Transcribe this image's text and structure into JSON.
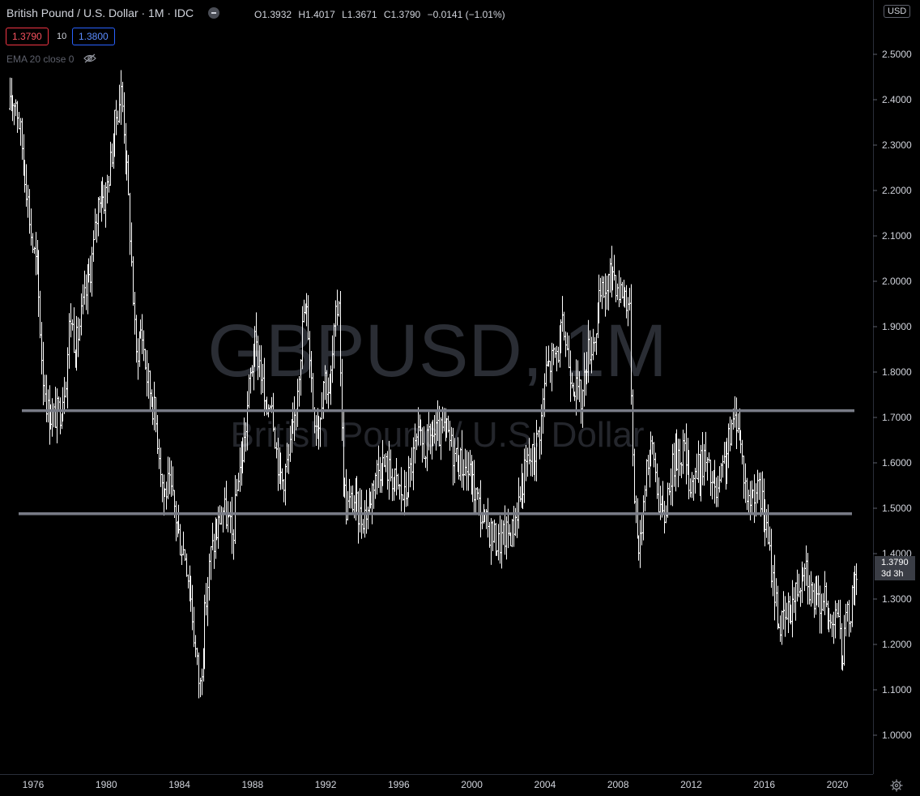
{
  "header": {
    "symbol_title": "British Pound / U.S. Dollar · 1M · IDC",
    "ohlc": {
      "open": "O1.3932",
      "high": "H1.4017",
      "low": "L1.3671",
      "close": "C1.3790",
      "change": "−0.0141 (−1.01%)"
    },
    "sell_price": "1.3790",
    "spread": "10",
    "buy_price": "1.3800",
    "indicator_label": "EMA 20 close 0",
    "currency_badge": "USD",
    "current_price": "1.3790",
    "countdown": "3d 3h"
  },
  "watermark": {
    "symbol": "GBPUSD, 1M",
    "description": "British Pound / U.S. Dollar"
  },
  "colors": {
    "background": "#000000",
    "bars": "#ffffff",
    "level_lines": "#787b86",
    "axis_text": "#d1d4dc"
  },
  "chart_data": {
    "type": "ohlc",
    "y_axis": {
      "ticks": [
        "1.0000",
        "1.1000",
        "1.2000",
        "1.3000",
        "1.4000",
        "1.5000",
        "1.6000",
        "1.7000",
        "1.8000",
        "1.9000",
        "2.0000",
        "2.1000",
        "2.2000",
        "2.3000",
        "2.4000",
        "2.5000"
      ],
      "range": [
        0.89,
        2.62
      ]
    },
    "x_axis": {
      "ticks": [
        "1976",
        "1980",
        "1984",
        "1988",
        "1992",
        "1996",
        "2000",
        "2004",
        "2008",
        "2012",
        "2016",
        "2020"
      ],
      "range": [
        1974.7,
        2021.7
      ]
    },
    "horizontal_levels": [
      1.715,
      1.488
    ],
    "series_path": [
      [
        1974.7,
        2.38
      ],
      [
        1975.0,
        2.41
      ],
      [
        1975.3,
        2.32
      ],
      [
        1975.6,
        2.22
      ],
      [
        1975.9,
        2.09
      ],
      [
        1976.2,
        2.02
      ],
      [
        1976.5,
        1.8
      ],
      [
        1976.8,
        1.71
      ],
      [
        1977.1,
        1.7
      ],
      [
        1977.5,
        1.72
      ],
      [
        1977.8,
        1.8
      ],
      [
        1978.0,
        1.93
      ],
      [
        1978.3,
        1.85
      ],
      [
        1978.7,
        1.94
      ],
      [
        1979.0,
        2.0
      ],
      [
        1979.3,
        2.08
      ],
      [
        1979.6,
        2.2
      ],
      [
        1979.9,
        2.18
      ],
      [
        1980.2,
        2.26
      ],
      [
        1980.5,
        2.36
      ],
      [
        1980.8,
        2.42
      ],
      [
        1981.0,
        2.32
      ],
      [
        1981.3,
        2.1
      ],
      [
        1981.6,
        1.83
      ],
      [
        1981.9,
        1.9
      ],
      [
        1982.2,
        1.79
      ],
      [
        1982.6,
        1.72
      ],
      [
        1982.9,
        1.62
      ],
      [
        1983.1,
        1.53
      ],
      [
        1983.4,
        1.55
      ],
      [
        1983.7,
        1.5
      ],
      [
        1984.0,
        1.43
      ],
      [
        1984.3,
        1.4
      ],
      [
        1984.6,
        1.31
      ],
      [
        1984.9,
        1.17
      ],
      [
        1985.1,
        1.1
      ],
      [
        1985.4,
        1.28
      ],
      [
        1985.7,
        1.4
      ],
      [
        1986.0,
        1.44
      ],
      [
        1986.3,
        1.5
      ],
      [
        1986.6,
        1.48
      ],
      [
        1986.9,
        1.43
      ],
      [
        1987.2,
        1.58
      ],
      [
        1987.5,
        1.63
      ],
      [
        1987.8,
        1.77
      ],
      [
        1988.1,
        1.86
      ],
      [
        1988.4,
        1.82
      ],
      [
        1988.7,
        1.7
      ],
      [
        1989.0,
        1.76
      ],
      [
        1989.3,
        1.62
      ],
      [
        1989.6,
        1.56
      ],
      [
        1989.9,
        1.6
      ],
      [
        1990.2,
        1.66
      ],
      [
        1990.5,
        1.8
      ],
      [
        1990.8,
        1.94
      ],
      [
        1991.0,
        1.92
      ],
      [
        1991.3,
        1.72
      ],
      [
        1991.6,
        1.68
      ],
      [
        1991.9,
        1.8
      ],
      [
        1992.2,
        1.75
      ],
      [
        1992.5,
        1.9
      ],
      [
        1992.7,
        1.97
      ],
      [
        1992.9,
        1.6
      ],
      [
        1993.1,
        1.5
      ],
      [
        1993.5,
        1.52
      ],
      [
        1993.9,
        1.48
      ],
      [
        1994.3,
        1.5
      ],
      [
        1994.7,
        1.58
      ],
      [
        1995.1,
        1.6
      ],
      [
        1995.5,
        1.58
      ],
      [
        1995.9,
        1.55
      ],
      [
        1996.3,
        1.52
      ],
      [
        1996.7,
        1.6
      ],
      [
        1997.0,
        1.65
      ],
      [
        1997.4,
        1.63
      ],
      [
        1997.8,
        1.66
      ],
      [
        1998.2,
        1.66
      ],
      [
        1998.6,
        1.67
      ],
      [
        1999.0,
        1.62
      ],
      [
        1999.4,
        1.6
      ],
      [
        1999.8,
        1.58
      ],
      [
        2000.2,
        1.53
      ],
      [
        2000.6,
        1.47
      ],
      [
        2001.0,
        1.45
      ],
      [
        2001.4,
        1.42
      ],
      [
        2001.8,
        1.44
      ],
      [
        2002.2,
        1.45
      ],
      [
        2002.6,
        1.53
      ],
      [
        2003.0,
        1.6
      ],
      [
        2003.4,
        1.62
      ],
      [
        2003.8,
        1.7
      ],
      [
        2004.0,
        1.8
      ],
      [
        2004.3,
        1.82
      ],
      [
        2004.7,
        1.85
      ],
      [
        2005.0,
        1.9
      ],
      [
        2005.3,
        1.82
      ],
      [
        2005.7,
        1.76
      ],
      [
        2006.0,
        1.74
      ],
      [
        2006.3,
        1.84
      ],
      [
        2006.7,
        1.88
      ],
      [
        2007.0,
        1.96
      ],
      [
        2007.4,
        1.99
      ],
      [
        2007.7,
        2.03
      ],
      [
        2008.0,
        1.98
      ],
      [
        2008.3,
        1.98
      ],
      [
        2008.6,
        1.95
      ],
      [
        2008.8,
        1.6
      ],
      [
        2009.0,
        1.44
      ],
      [
        2009.2,
        1.42
      ],
      [
        2009.5,
        1.6
      ],
      [
        2009.9,
        1.63
      ],
      [
        2010.2,
        1.52
      ],
      [
        2010.5,
        1.47
      ],
      [
        2010.8,
        1.57
      ],
      [
        2011.2,
        1.62
      ],
      [
        2011.6,
        1.63
      ],
      [
        2011.9,
        1.56
      ],
      [
        2012.3,
        1.58
      ],
      [
        2012.7,
        1.61
      ],
      [
        2013.0,
        1.57
      ],
      [
        2013.4,
        1.52
      ],
      [
        2013.8,
        1.6
      ],
      [
        2014.2,
        1.67
      ],
      [
        2014.5,
        1.71
      ],
      [
        2014.8,
        1.6
      ],
      [
        2015.1,
        1.51
      ],
      [
        2015.5,
        1.55
      ],
      [
        2015.9,
        1.51
      ],
      [
        2016.2,
        1.42
      ],
      [
        2016.5,
        1.33
      ],
      [
        2016.8,
        1.24
      ],
      [
        2017.1,
        1.25
      ],
      [
        2017.5,
        1.29
      ],
      [
        2017.9,
        1.34
      ],
      [
        2018.2,
        1.4
      ],
      [
        2018.5,
        1.32
      ],
      [
        2018.9,
        1.28
      ],
      [
        2019.2,
        1.31
      ],
      [
        2019.6,
        1.24
      ],
      [
        2019.9,
        1.3
      ],
      [
        2020.2,
        1.17
      ],
      [
        2020.5,
        1.25
      ],
      [
        2020.8,
        1.3
      ],
      [
        2021.0,
        1.37
      ],
      [
        2021.1,
        1.379
      ]
    ],
    "grid": false,
    "legend": "none"
  }
}
